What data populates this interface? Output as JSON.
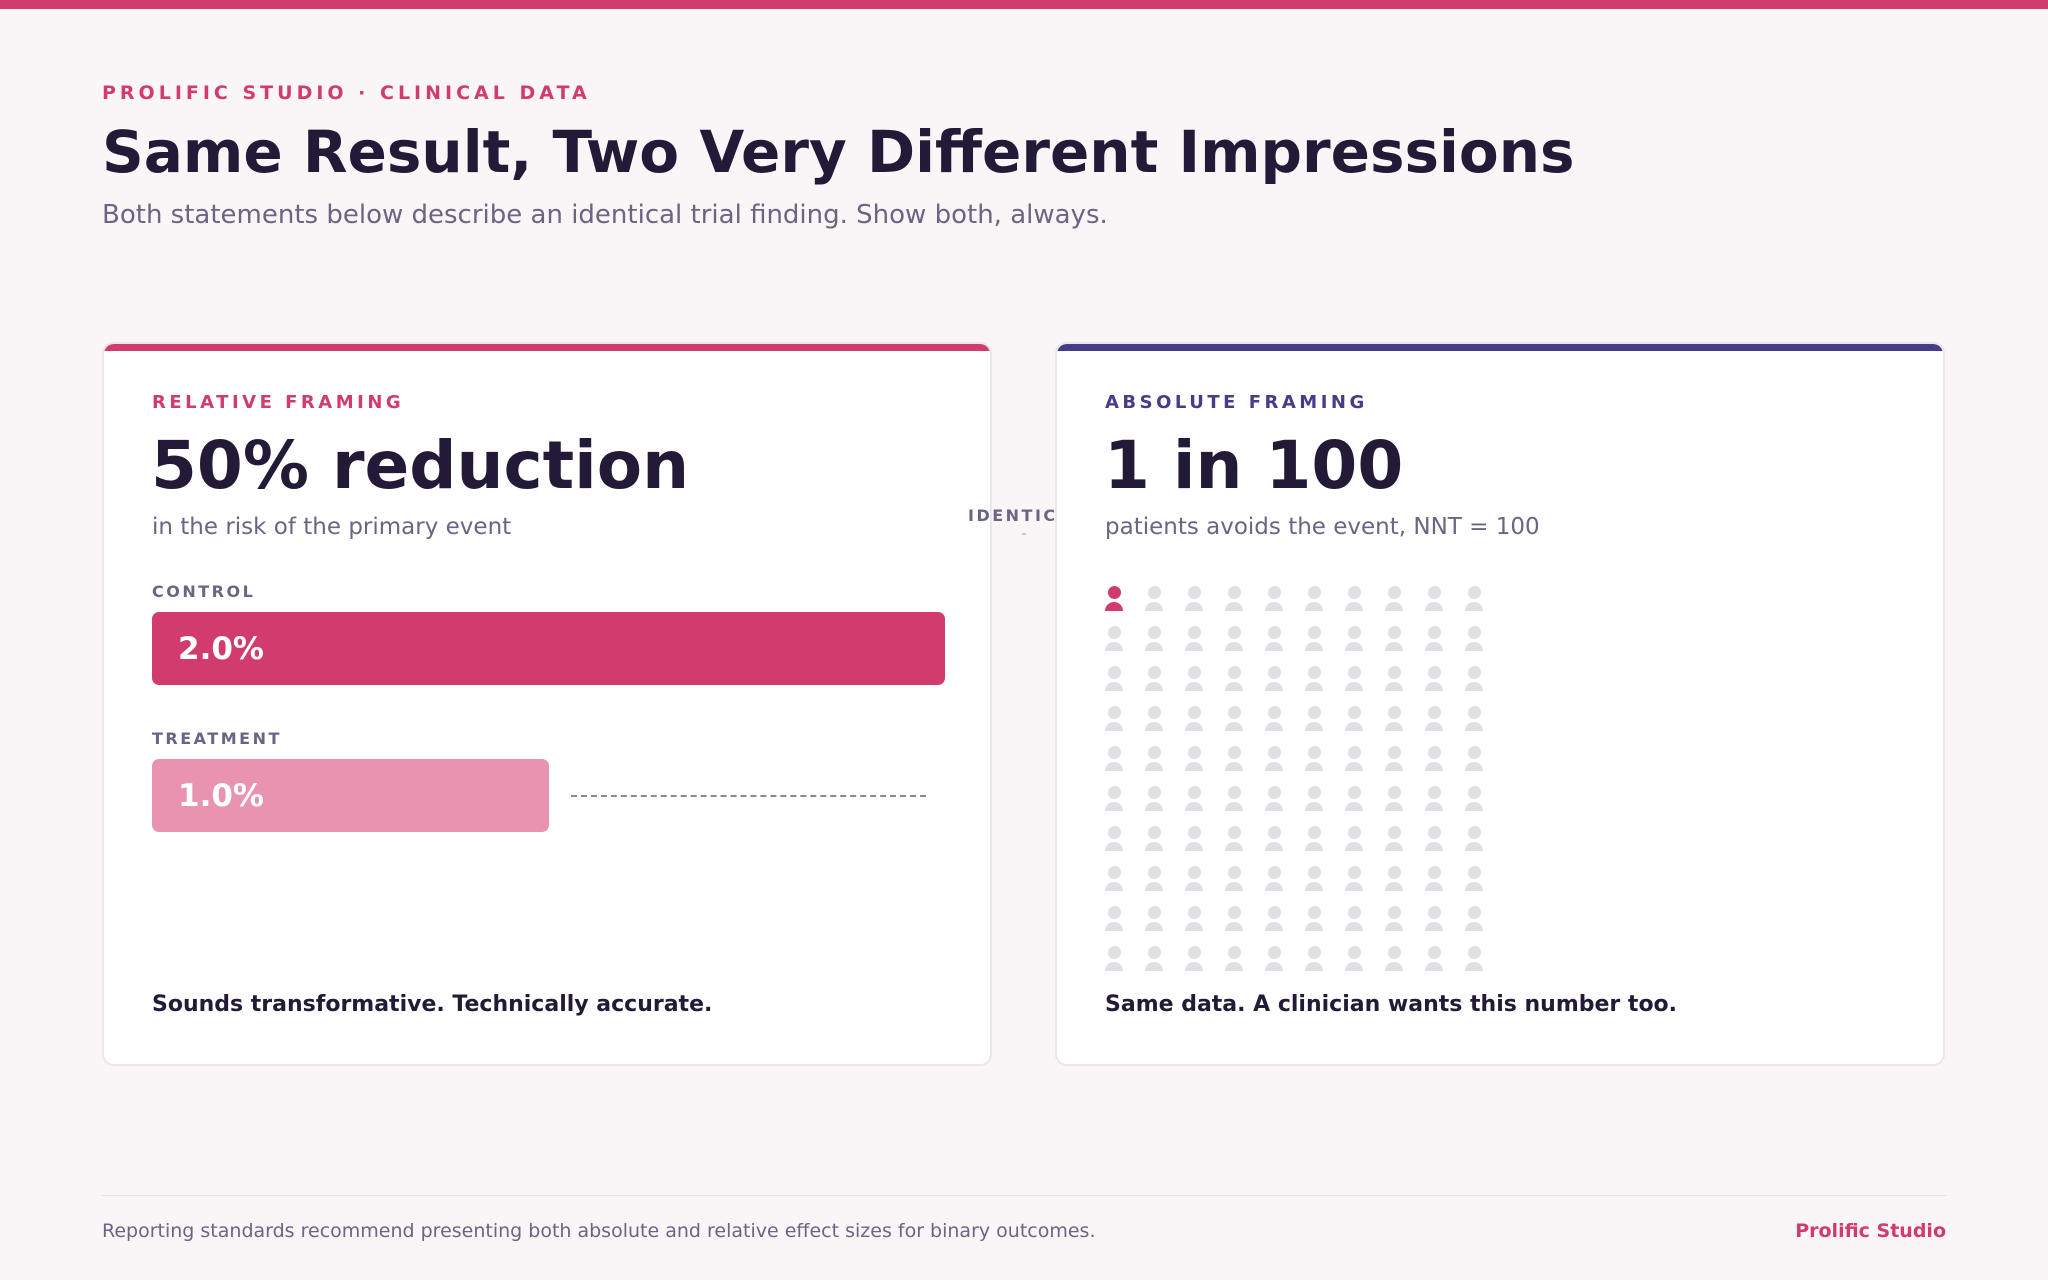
{
  "header": {
    "eyebrow": "PROLIFIC STUDIO · CLINICAL DATA",
    "title": "Same Result, Two Very Different Impressions",
    "subtitle": "Both statements below describe an identical trial finding. Show both, always."
  },
  "relative_card": {
    "label": "RELATIVE FRAMING",
    "headline": "50% reduction",
    "subtext": "in the risk of the primary event",
    "bars": [
      {
        "label": "CONTROL",
        "value_text": "2.0%",
        "value": 2.0
      },
      {
        "label": "TREATMENT",
        "value_text": "1.0%",
        "value": 1.0
      }
    ],
    "footnote": "Sounds transformative. Technically accurate."
  },
  "connector": {
    "label": "IDENTICAL"
  },
  "absolute_card": {
    "label": "ABSOLUTE FRAMING",
    "headline": "1 in 100",
    "subtext": "patients avoids the event, NNT = 100",
    "icon_array": {
      "total": 100,
      "highlighted": 1,
      "icon": "person-icon"
    },
    "footnote": "Same data. A clinician wants this number too."
  },
  "footer": {
    "note": "Reporting standards recommend presenting both absolute and relative effect sizes for binary outcomes.",
    "brand": "Prolific Studio"
  },
  "colors": {
    "accent_pink": "#d13b6e",
    "light_pink": "#e893b0",
    "accent_indigo": "#433d8b",
    "text_dark": "#221a36",
    "text_muted": "#6b6483"
  }
}
